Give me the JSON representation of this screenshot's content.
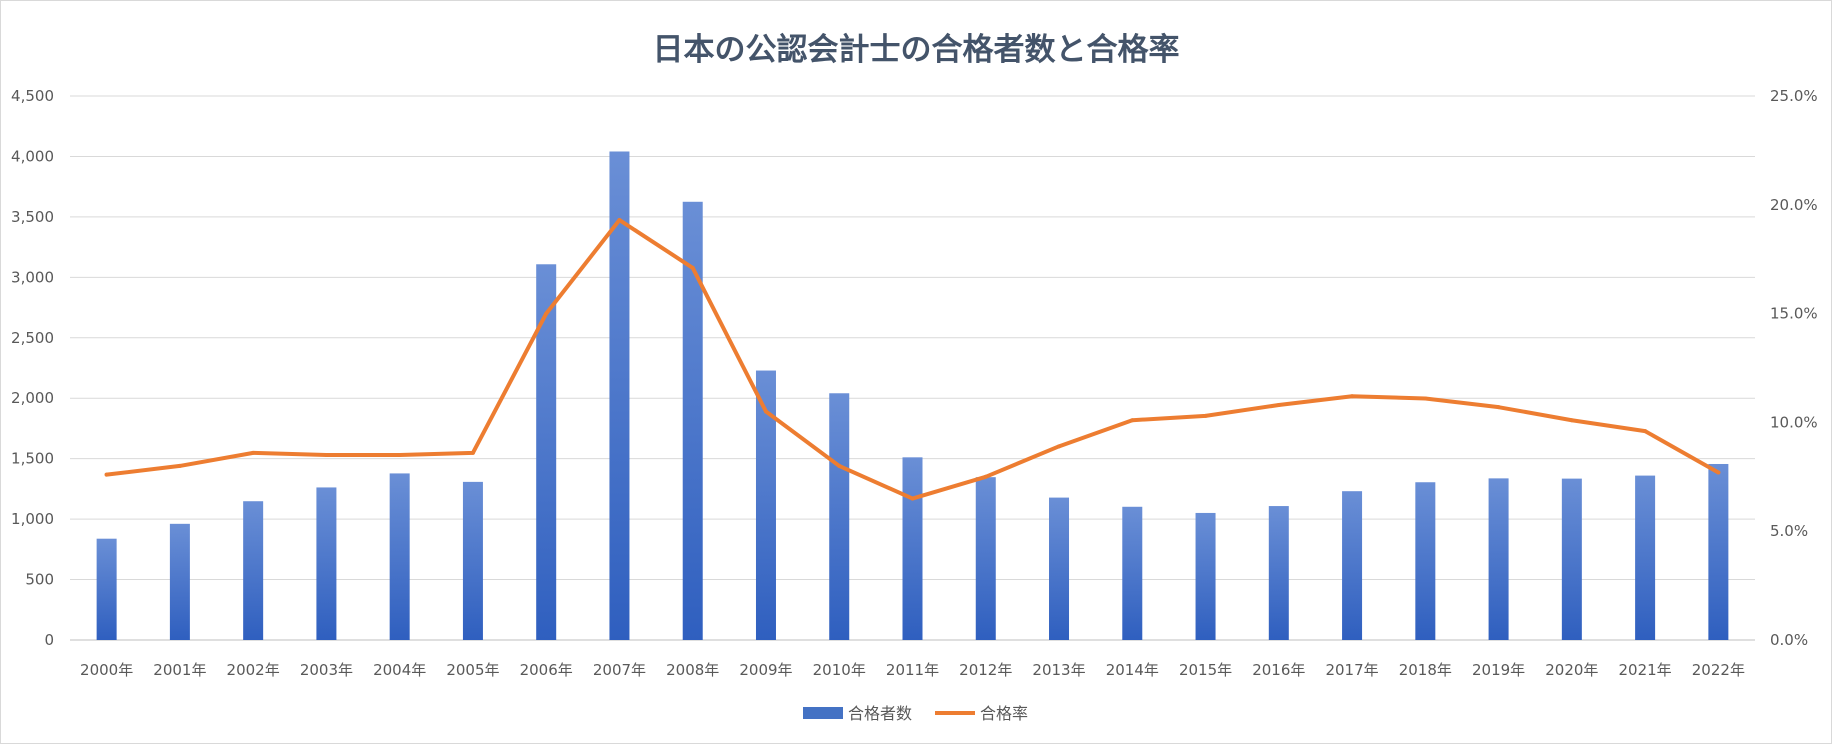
{
  "chart_data": {
    "type": "bar",
    "title": "日本の公認会計士の合格者数と合格率",
    "categories": [
      "2000年",
      "2001年",
      "2002年",
      "2003年",
      "2004年",
      "2005年",
      "2006年",
      "2007年",
      "2008年",
      "2009年",
      "2010年",
      "2011年",
      "2012年",
      "2013年",
      "2014年",
      "2015年",
      "2016年",
      "2017年",
      "2018年",
      "2019年",
      "2020年",
      "2021年",
      "2022年"
    ],
    "series": [
      {
        "name": "合格者数",
        "type": "bar",
        "axis": "left",
        "color": "#4472c4",
        "values": [
          838,
          961,
          1148,
          1262,
          1378,
          1308,
          3108,
          4041,
          3625,
          2229,
          2041,
          1511,
          1347,
          1178,
          1102,
          1051,
          1108,
          1231,
          1305,
          1337,
          1335,
          1360,
          1456
        ]
      },
      {
        "name": "合格率",
        "type": "line",
        "axis": "right",
        "color": "#ed7d31",
        "values": [
          7.6,
          8.0,
          8.6,
          8.5,
          8.5,
          8.6,
          15.0,
          19.3,
          17.1,
          10.5,
          8.0,
          6.5,
          7.5,
          8.9,
          10.1,
          10.3,
          10.8,
          11.2,
          11.1,
          10.7,
          10.1,
          9.6,
          7.7
        ]
      }
    ],
    "y_left": {
      "min": 0,
      "max": 4500,
      "ticks": [
        "0",
        "500",
        "1,000",
        "1,500",
        "2,000",
        "2,500",
        "3,000",
        "3,500",
        "4,000",
        "4,500"
      ]
    },
    "y_right": {
      "min": 0,
      "max": 25,
      "ticks": [
        "0.0%",
        "5.0%",
        "10.0%",
        "15.0%",
        "20.0%",
        "25.0%"
      ]
    },
    "grid": true,
    "legend_position": "bottom"
  }
}
